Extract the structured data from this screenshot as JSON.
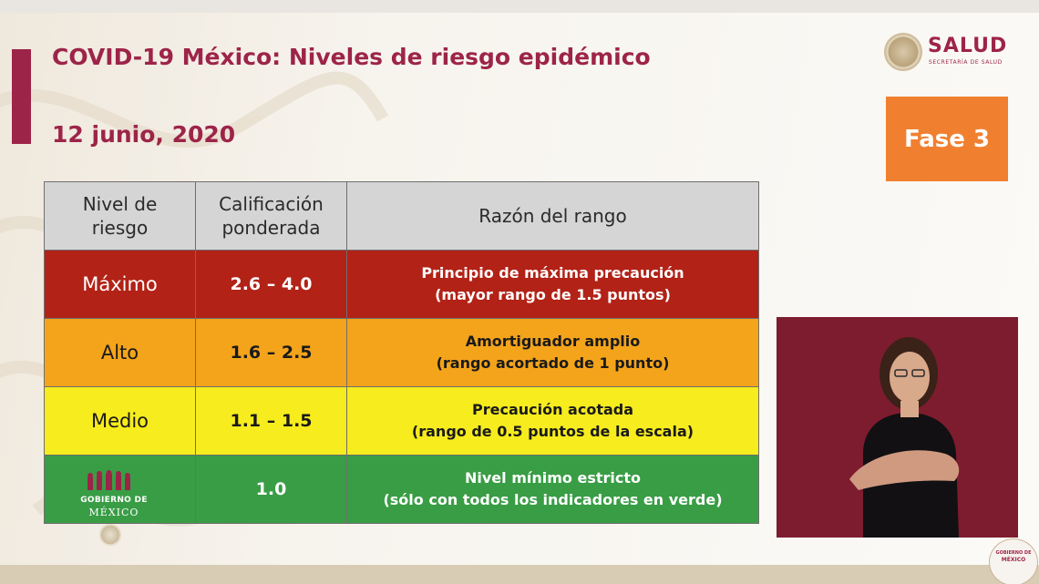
{
  "slide": {
    "title": "COVID-19 México: Niveles de riesgo epidémico",
    "date": "12 junio, 2020",
    "phase_badge": "Fase 3"
  },
  "logo": {
    "word": "SALUD",
    "subtitle": "SECRETARÍA DE SALUD"
  },
  "table": {
    "headers": {
      "level": [
        "Nivel de",
        "riesgo"
      ],
      "score": [
        "Calificación",
        "ponderada"
      ],
      "reason": "Razón del rango"
    },
    "rows": [
      {
        "level": "Máximo",
        "score": "2.6 – 4.0",
        "reason": [
          "Principio de máxima precaución",
          "(mayor rango de 1.5 puntos)"
        ]
      },
      {
        "level": "Alto",
        "score": "1.6 – 2.5",
        "reason": [
          "Amortiguador amplio",
          "(rango acortado de 1 punto)"
        ]
      },
      {
        "level": "Medio",
        "score": "1.1 – 1.5",
        "reason": [
          "Precaución acotada",
          "(rango de 0.5 puntos de la escala)"
        ]
      },
      {
        "level": "",
        "score": "1.0",
        "reason": [
          "Nivel mínimo estricto",
          "(sólo con todos los indicadores en verde)"
        ]
      }
    ]
  },
  "gobierno_logo": {
    "line1": "GOBIERNO DE",
    "line2": "MÉXICO"
  },
  "corner_logo": {
    "line1": "GOBIERNO DE",
    "line2": "MÉXICO"
  },
  "colors": {
    "brand": "#9d2449",
    "phase": "#f08030",
    "maximo": "#b22217",
    "alto": "#f4a41b",
    "medio": "#f7ec1d",
    "bajo": "#399d45"
  }
}
